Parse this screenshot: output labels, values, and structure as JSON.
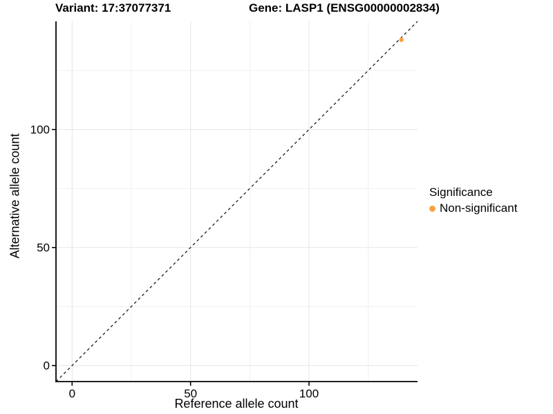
{
  "titles": {
    "left": "Variant: 17:37077371",
    "right": "Gene: LASP1 (ENSG00000002834)"
  },
  "axes": {
    "x_label": "Reference allele count",
    "y_label": "Alternative allele count"
  },
  "legend": {
    "title": "Significance",
    "items": [
      {
        "label": "Non-significant",
        "color": "#F9A242"
      }
    ]
  },
  "colors": {
    "background": "#ffffff",
    "axis_line": "#000000",
    "tick_text": "#000000",
    "grid_major": "#e5e5e5",
    "grid_minor": "#f0f0f0",
    "identity_line": "#1a1a1a",
    "point_nonsignificant": "#F9A242"
  },
  "chart_data": {
    "type": "scatter",
    "title_left": "Variant: 17:37077371",
    "title_right": "Gene: LASP1 (ENSG00000002834)",
    "xlabel": "Reference allele count",
    "ylabel": "Alternative allele count",
    "xlim": [
      -6.8,
      145.8
    ],
    "ylim": [
      -6.8,
      145.8
    ],
    "x_ticks": [
      0,
      50,
      100
    ],
    "y_ticks": [
      0,
      50,
      100
    ],
    "x_minor": [
      25,
      75,
      125
    ],
    "y_minor": [
      25,
      75,
      125
    ],
    "grid": true,
    "legend_position": "right",
    "legend_title": "Significance",
    "reference_line": {
      "type": "identity y=x",
      "style": "dashed",
      "color": "#1a1a1a"
    },
    "series": [
      {
        "name": "Non-significant",
        "color": "#F9A242",
        "points": [
          {
            "x": 139,
            "y": 138
          }
        ]
      }
    ]
  }
}
